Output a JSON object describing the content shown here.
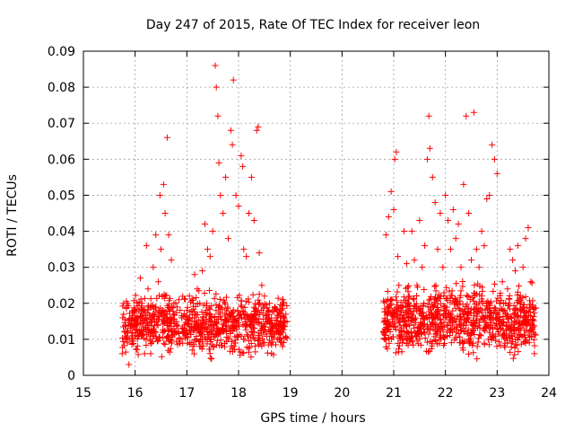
{
  "chart_data": {
    "type": "scatter",
    "title": "Day 247 of 2015, Rate Of TEC Index for receiver leon",
    "xlabel": "GPS time / hours",
    "ylabel": "ROTI / TECUs",
    "xlim": [
      15,
      24
    ],
    "ylim": [
      0,
      0.09
    ],
    "x_ticks": [
      15,
      16,
      17,
      18,
      19,
      20,
      21,
      22,
      23,
      24
    ],
    "y_ticks": [
      0,
      0.01,
      0.02,
      0.03,
      0.04,
      0.05,
      0.06,
      0.07,
      0.08,
      0.09
    ],
    "x_tick_labels": [
      "15",
      "16",
      "17",
      "18",
      "19",
      "20",
      "21",
      "22",
      "23",
      "24"
    ],
    "y_tick_labels": [
      "0",
      "0.01",
      "0.02",
      "0.03",
      "0.04",
      "0.05",
      "0.06",
      "0.07",
      "0.08",
      "0.09"
    ],
    "grid": true,
    "marker": "plus",
    "marker_color": "#ff0000",
    "series": [
      {
        "name": "ROTI",
        "points": [
          [
            15.75,
            0.006
          ],
          [
            15.8,
            0.012
          ],
          [
            15.85,
            0.009
          ],
          [
            15.88,
            0.003
          ],
          [
            15.9,
            0.014
          ],
          [
            15.95,
            0.011
          ],
          [
            16.0,
            0.016
          ],
          [
            16.05,
            0.012
          ],
          [
            16.08,
            0.02
          ],
          [
            16.1,
            0.027
          ],
          [
            16.15,
            0.018
          ],
          [
            16.2,
            0.013
          ],
          [
            16.22,
            0.036
          ],
          [
            16.25,
            0.024
          ],
          [
            16.3,
            0.016
          ],
          [
            16.35,
            0.03
          ],
          [
            16.4,
            0.039
          ],
          [
            16.45,
            0.026
          ],
          [
            16.48,
            0.05
          ],
          [
            16.5,
            0.035
          ],
          [
            16.55,
            0.053
          ],
          [
            16.58,
            0.045
          ],
          [
            16.62,
            0.066
          ],
          [
            16.65,
            0.039
          ],
          [
            16.7,
            0.032
          ],
          [
            16.75,
            0.02
          ],
          [
            16.8,
            0.014
          ],
          [
            16.85,
            0.01
          ],
          [
            16.9,
            0.016
          ],
          [
            16.95,
            0.013
          ],
          [
            17.0,
            0.018
          ],
          [
            17.05,
            0.022
          ],
          [
            17.1,
            0.015
          ],
          [
            17.15,
            0.028
          ],
          [
            17.2,
            0.024
          ],
          [
            17.25,
            0.02
          ],
          [
            17.3,
            0.029
          ],
          [
            17.35,
            0.042
          ],
          [
            17.4,
            0.035
          ],
          [
            17.45,
            0.033
          ],
          [
            17.5,
            0.04
          ],
          [
            17.55,
            0.086
          ],
          [
            17.57,
            0.08
          ],
          [
            17.6,
            0.072
          ],
          [
            17.62,
            0.059
          ],
          [
            17.65,
            0.05
          ],
          [
            17.7,
            0.045
          ],
          [
            17.75,
            0.055
          ],
          [
            17.8,
            0.038
          ],
          [
            17.85,
            0.068
          ],
          [
            17.88,
            0.064
          ],
          [
            17.9,
            0.082
          ],
          [
            17.95,
            0.05
          ],
          [
            18.0,
            0.047
          ],
          [
            18.05,
            0.061
          ],
          [
            18.08,
            0.058
          ],
          [
            18.1,
            0.035
          ],
          [
            18.15,
            0.033
          ],
          [
            18.2,
            0.045
          ],
          [
            18.25,
            0.055
          ],
          [
            18.3,
            0.043
          ],
          [
            18.35,
            0.068
          ],
          [
            18.38,
            0.069
          ],
          [
            18.4,
            0.034
          ],
          [
            18.45,
            0.025
          ],
          [
            18.5,
            0.022
          ],
          [
            18.55,
            0.016
          ],
          [
            18.6,
            0.02
          ],
          [
            18.65,
            0.013
          ],
          [
            18.7,
            0.019
          ],
          [
            18.75,
            0.01
          ],
          [
            18.8,
            0.012
          ],
          [
            18.85,
            0.008
          ],
          [
            18.9,
            0.015
          ],
          [
            20.8,
            0.012
          ],
          [
            20.85,
            0.039
          ],
          [
            20.88,
            0.019
          ],
          [
            20.9,
            0.044
          ],
          [
            20.95,
            0.051
          ],
          [
            21.0,
            0.046
          ],
          [
            21.02,
            0.06
          ],
          [
            21.05,
            0.062
          ],
          [
            21.08,
            0.033
          ],
          [
            21.1,
            0.025
          ],
          [
            21.15,
            0.018
          ],
          [
            21.2,
            0.04
          ],
          [
            21.25,
            0.031
          ],
          [
            21.3,
            0.022
          ],
          [
            21.35,
            0.04
          ],
          [
            21.4,
            0.032
          ],
          [
            21.45,
            0.025
          ],
          [
            21.5,
            0.043
          ],
          [
            21.55,
            0.03
          ],
          [
            21.6,
            0.036
          ],
          [
            21.65,
            0.06
          ],
          [
            21.68,
            0.072
          ],
          [
            21.7,
            0.063
          ],
          [
            21.75,
            0.055
          ],
          [
            21.8,
            0.048
          ],
          [
            21.85,
            0.035
          ],
          [
            21.9,
            0.045
          ],
          [
            21.95,
            0.03
          ],
          [
            22.0,
            0.05
          ],
          [
            22.05,
            0.043
          ],
          [
            22.1,
            0.035
          ],
          [
            22.15,
            0.046
          ],
          [
            22.2,
            0.038
          ],
          [
            22.25,
            0.042
          ],
          [
            22.3,
            0.03
          ],
          [
            22.35,
            0.053
          ],
          [
            22.4,
            0.072
          ],
          [
            22.45,
            0.045
          ],
          [
            22.5,
            0.032
          ],
          [
            22.55,
            0.073
          ],
          [
            22.6,
            0.035
          ],
          [
            22.65,
            0.03
          ],
          [
            22.7,
            0.04
          ],
          [
            22.75,
            0.036
          ],
          [
            22.8,
            0.049
          ],
          [
            22.85,
            0.05
          ],
          [
            22.9,
            0.064
          ],
          [
            22.95,
            0.06
          ],
          [
            23.0,
            0.056
          ],
          [
            23.05,
            0.02
          ],
          [
            23.1,
            0.026
          ],
          [
            23.15,
            0.018
          ],
          [
            23.2,
            0.024
          ],
          [
            23.25,
            0.035
          ],
          [
            23.3,
            0.032
          ],
          [
            23.35,
            0.029
          ],
          [
            23.4,
            0.036
          ],
          [
            23.45,
            0.022
          ],
          [
            23.5,
            0.03
          ],
          [
            23.55,
            0.038
          ],
          [
            23.6,
            0.041
          ],
          [
            23.65,
            0.026
          ],
          [
            23.7,
            0.012
          ],
          [
            23.72,
            0.006
          ]
        ]
      }
    ],
    "dense_clusters": [
      {
        "x_range": [
          15.75,
          18.95
        ],
        "y_range": [
          0.003,
          0.025
        ]
      },
      {
        "x_range": [
          20.8,
          23.75
        ],
        "y_range": [
          0.003,
          0.028
        ]
      }
    ]
  }
}
